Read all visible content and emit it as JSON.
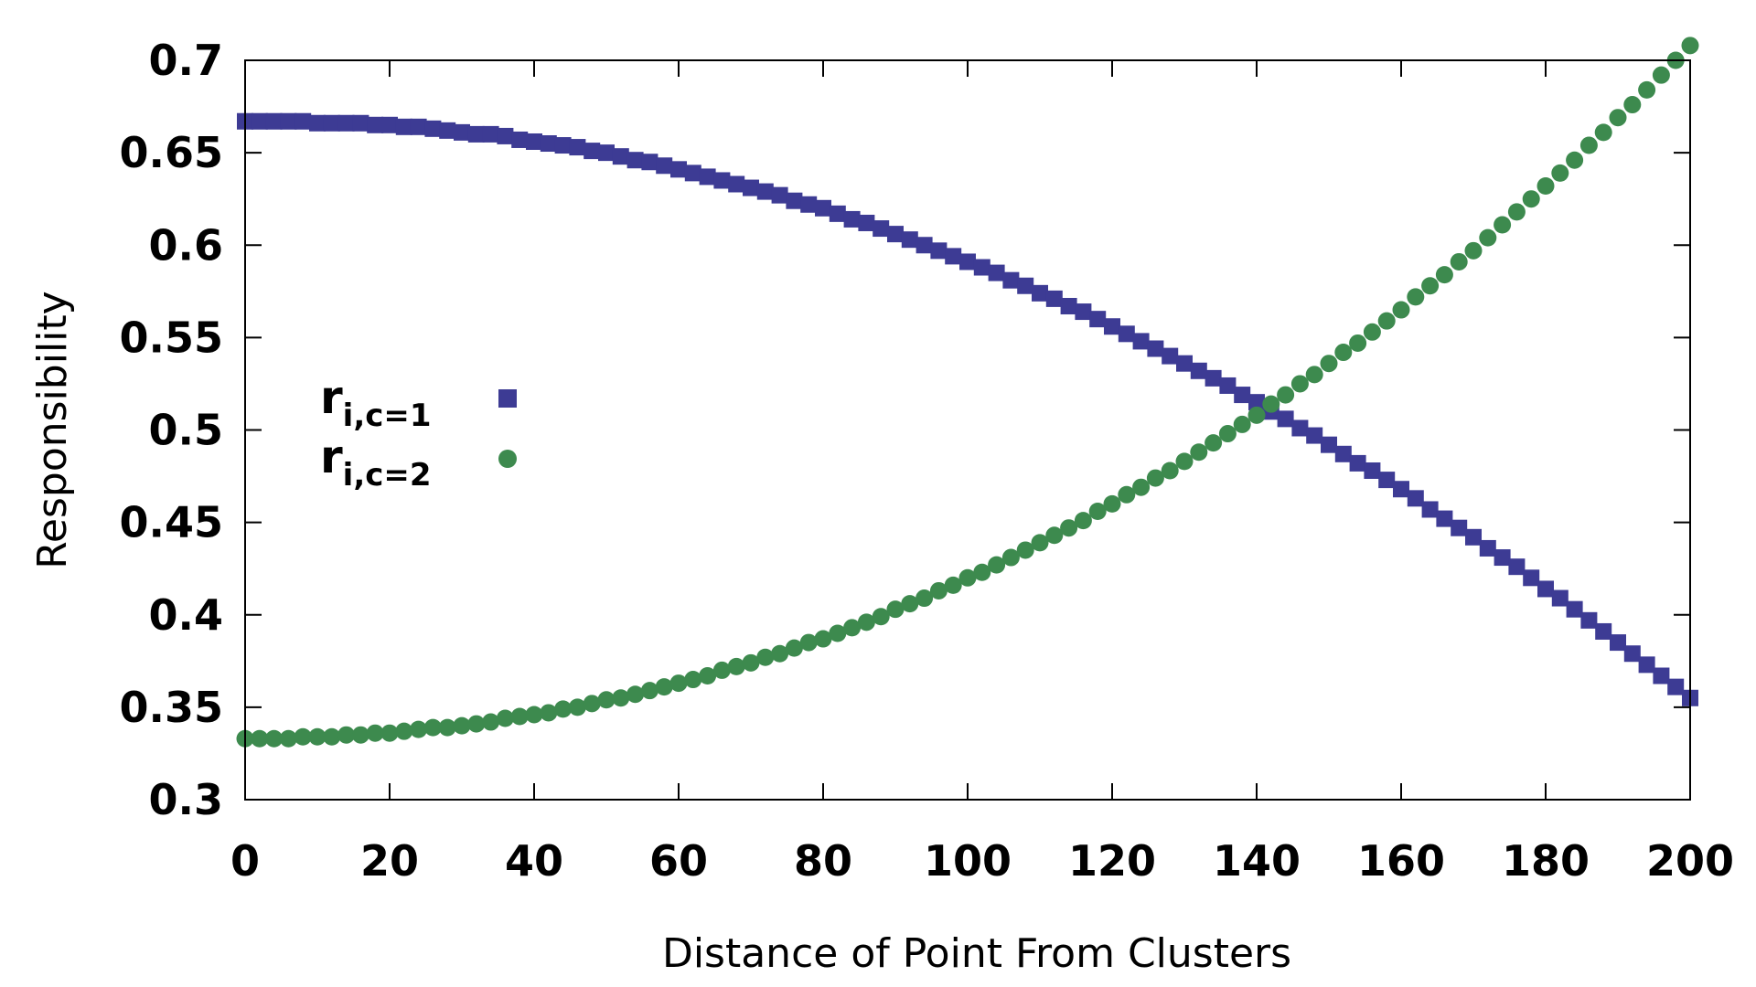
{
  "chart_data": {
    "type": "scatter",
    "title": "",
    "xlabel": "Distance of Point From Clusters",
    "ylabel": "Responsibility",
    "xlim": [
      0,
      200
    ],
    "ylim": [
      0.3,
      0.7
    ],
    "xticks": [
      "0",
      "20",
      "40",
      "60",
      "80",
      "100",
      "120",
      "140",
      "160",
      "180",
      "200"
    ],
    "yticks": [
      "0.3",
      "0.35",
      "0.4",
      "0.45",
      "0.5",
      "0.55",
      "0.6",
      "0.65",
      "0.7"
    ],
    "grid": false,
    "legend_position": "left-center",
    "x_step": 2,
    "series": [
      {
        "name": "r_{i,c=1}",
        "label_base": "r",
        "label_sub": "i,c=1",
        "marker": "square",
        "color": "#3d3b94",
        "values": [
          0.667,
          0.667,
          0.667,
          0.667,
          0.667,
          0.666,
          0.666,
          0.666,
          0.666,
          0.665,
          0.665,
          0.664,
          0.664,
          0.663,
          0.662,
          0.661,
          0.66,
          0.66,
          0.659,
          0.657,
          0.656,
          0.655,
          0.654,
          0.653,
          0.651,
          0.65,
          0.648,
          0.646,
          0.645,
          0.643,
          0.641,
          0.639,
          0.637,
          0.635,
          0.633,
          0.631,
          0.629,
          0.627,
          0.624,
          0.622,
          0.62,
          0.617,
          0.614,
          0.612,
          0.609,
          0.606,
          0.603,
          0.6,
          0.597,
          0.594,
          0.591,
          0.588,
          0.585,
          0.581,
          0.578,
          0.574,
          0.571,
          0.567,
          0.564,
          0.56,
          0.556,
          0.552,
          0.548,
          0.544,
          0.54,
          0.536,
          0.532,
          0.528,
          0.524,
          0.519,
          0.515,
          0.51,
          0.506,
          0.501,
          0.497,
          0.492,
          0.487,
          0.482,
          0.478,
          0.473,
          0.468,
          0.463,
          0.457,
          0.452,
          0.447,
          0.442,
          0.436,
          0.431,
          0.426,
          0.42,
          0.414,
          0.409,
          0.403,
          0.397,
          0.391,
          0.385,
          0.379,
          0.373,
          0.367,
          0.361,
          0.355
        ]
      },
      {
        "name": "r_{i,c=2}",
        "label_base": "r",
        "label_sub": "i,c=2",
        "marker": "circle",
        "color": "#3d8a4e",
        "values": [
          0.333,
          0.333,
          0.333,
          0.333,
          0.334,
          0.334,
          0.334,
          0.335,
          0.335,
          0.336,
          0.336,
          0.337,
          0.338,
          0.339,
          0.339,
          0.34,
          0.341,
          0.342,
          0.344,
          0.345,
          0.346,
          0.347,
          0.349,
          0.35,
          0.352,
          0.354,
          0.355,
          0.357,
          0.359,
          0.361,
          0.363,
          0.365,
          0.367,
          0.37,
          0.372,
          0.374,
          0.377,
          0.379,
          0.382,
          0.385,
          0.387,
          0.39,
          0.393,
          0.396,
          0.399,
          0.403,
          0.406,
          0.409,
          0.413,
          0.416,
          0.42,
          0.423,
          0.427,
          0.431,
          0.435,
          0.439,
          0.443,
          0.447,
          0.451,
          0.456,
          0.46,
          0.465,
          0.469,
          0.474,
          0.478,
          0.483,
          0.488,
          0.493,
          0.498,
          0.503,
          0.508,
          0.514,
          0.519,
          0.525,
          0.53,
          0.536,
          0.542,
          0.547,
          0.553,
          0.559,
          0.565,
          0.572,
          0.578,
          0.584,
          0.591,
          0.597,
          0.604,
          0.611,
          0.618,
          0.625,
          0.632,
          0.639,
          0.646,
          0.654,
          0.661,
          0.669,
          0.676,
          0.684,
          0.692,
          0.7,
          0.708
        ]
      }
    ]
  }
}
